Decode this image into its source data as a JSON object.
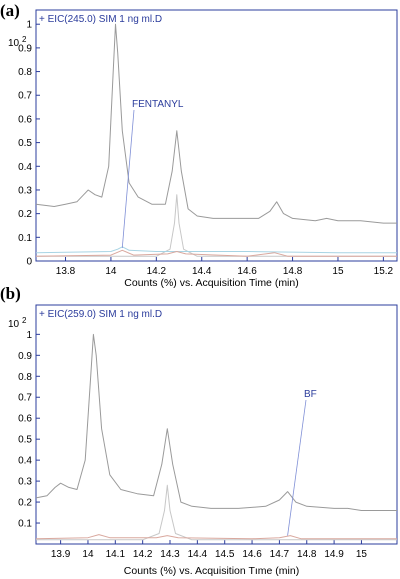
{
  "chart_data": [
    {
      "type": "line",
      "panel_label": "(a)",
      "trace_title": "+ EIC(245.0) SIM 1 ng ml.D",
      "y_scale_base": "10",
      "y_scale_exponent": "2",
      "xlabel": "Counts (%) vs. Acquisition Time (min)",
      "ylabel": "",
      "xlim": [
        13.67,
        15.26
      ],
      "ylim": [
        0,
        1.06
      ],
      "x_ticks": [
        13.8,
        14,
        14.2,
        14.4,
        14.6,
        14.8,
        15,
        15.2
      ],
      "x_tick_labels": [
        "13.8",
        "14",
        "14.2",
        "14.4",
        "14.6",
        "14.8",
        "15",
        "15.2"
      ],
      "y_ticks": [
        0,
        0.1,
        0.2,
        0.3,
        0.4,
        0.5,
        0.6,
        0.7,
        0.8,
        0.9,
        1
      ],
      "y_tick_labels": [
        "0",
        "0.1",
        "0.2",
        "0.3",
        "0.4",
        "0.5",
        "0.6",
        "0.7",
        "0.8",
        "0.9",
        "1"
      ],
      "annotations": [
        {
          "text": "FENTANYL",
          "x": 14.05,
          "y": 0.055
        }
      ],
      "series": [
        {
          "color": "#9a9a9a",
          "x": [
            13.67,
            13.75,
            13.8,
            13.85,
            13.88,
            13.9,
            13.93,
            13.96,
            13.99,
            14.01,
            14.02,
            14.03,
            14.05,
            14.08,
            14.12,
            14.18,
            14.24,
            14.27,
            14.29,
            14.31,
            14.34,
            14.38,
            14.45,
            14.55,
            14.65,
            14.7,
            14.73,
            14.76,
            14.8,
            14.9,
            14.95,
            15.0,
            15.1,
            15.2,
            15.26
          ],
          "y": [
            0.24,
            0.23,
            0.24,
            0.25,
            0.28,
            0.3,
            0.28,
            0.27,
            0.4,
            0.8,
            1.0,
            0.88,
            0.55,
            0.33,
            0.27,
            0.24,
            0.24,
            0.38,
            0.55,
            0.38,
            0.22,
            0.19,
            0.18,
            0.18,
            0.18,
            0.21,
            0.25,
            0.2,
            0.18,
            0.17,
            0.18,
            0.17,
            0.17,
            0.16,
            0.16
          ]
        },
        {
          "color": "#c7c7c7",
          "x": [
            13.67,
            14.1,
            14.2,
            14.26,
            14.28,
            14.29,
            14.3,
            14.32,
            14.38,
            14.6,
            15.26
          ],
          "y": [
            0.02,
            0.02,
            0.02,
            0.05,
            0.16,
            0.28,
            0.16,
            0.05,
            0.02,
            0.02,
            0.02
          ]
        },
        {
          "color": "#a8d4e4",
          "x": [
            13.67,
            14.0,
            14.03,
            14.05,
            14.08,
            14.2,
            14.6,
            15.0,
            15.26
          ],
          "y": [
            0.035,
            0.04,
            0.05,
            0.06,
            0.045,
            0.04,
            0.04,
            0.035,
            0.035
          ]
        },
        {
          "color": "#d9a89e",
          "x": [
            13.67,
            14.0,
            14.05,
            14.1,
            14.25,
            14.29,
            14.33,
            14.6,
            14.72,
            14.78,
            15.0,
            15.26
          ],
          "y": [
            0.02,
            0.025,
            0.045,
            0.025,
            0.03,
            0.04,
            0.03,
            0.02,
            0.035,
            0.02,
            0.02,
            0.02
          ]
        }
      ]
    },
    {
      "type": "line",
      "panel_label": "(b)",
      "trace_title": "+ EIC(259.0) SIM 1 ng ml.D",
      "y_scale_base": "10",
      "y_scale_exponent": "2",
      "xlabel": "Counts (%) vs. Acquisition Tıme (min)",
      "ylabel": "",
      "xlim": [
        13.81,
        15.13
      ],
      "ylim": [
        0,
        1.14
      ],
      "x_ticks": [
        13.9,
        14,
        14.1,
        14.2,
        14.3,
        14.4,
        14.5,
        14.6,
        14.7,
        14.8,
        14.9,
        15
      ],
      "x_tick_labels": [
        "13.9",
        "14",
        "14.1",
        "14.2",
        "14.3",
        "14.4",
        "14.5",
        "14.6",
        "14.7",
        "14.8",
        "14.9",
        "15"
      ],
      "y_ticks": [
        0.1,
        0.2,
        0.3,
        0.4,
        0.5,
        0.6,
        0.7,
        0.8,
        0.9,
        1
      ],
      "y_tick_labels": [
        "0.1",
        "0.2",
        "0.3",
        "0.4",
        "0.5",
        "0.6",
        "0.7",
        "0.8",
        "0.9",
        "1"
      ],
      "annotations": [
        {
          "text": "BF",
          "x": 14.73,
          "y": 0.04
        }
      ],
      "series": [
        {
          "color": "#9a9a9a",
          "x": [
            13.81,
            13.85,
            13.88,
            13.9,
            13.93,
            13.96,
            13.99,
            14.01,
            14.02,
            14.03,
            14.05,
            14.08,
            14.12,
            14.18,
            14.24,
            14.27,
            14.29,
            14.31,
            14.34,
            14.38,
            14.45,
            14.55,
            14.65,
            14.7,
            14.73,
            14.76,
            14.8,
            14.9,
            14.95,
            15.0,
            15.1,
            15.13
          ],
          "y": [
            0.22,
            0.23,
            0.27,
            0.29,
            0.27,
            0.26,
            0.4,
            0.8,
            1.0,
            0.9,
            0.55,
            0.33,
            0.26,
            0.24,
            0.23,
            0.38,
            0.55,
            0.38,
            0.2,
            0.18,
            0.17,
            0.17,
            0.18,
            0.21,
            0.25,
            0.2,
            0.18,
            0.17,
            0.17,
            0.16,
            0.16,
            0.16
          ]
        },
        {
          "color": "#c7c7c7",
          "x": [
            13.81,
            14.1,
            14.2,
            14.26,
            14.28,
            14.29,
            14.3,
            14.32,
            14.38,
            14.6,
            15.13
          ],
          "y": [
            0.02,
            0.02,
            0.02,
            0.05,
            0.16,
            0.28,
            0.16,
            0.05,
            0.02,
            0.02,
            0.02
          ]
        },
        {
          "color": "#d9a89e",
          "x": [
            13.81,
            14.0,
            14.04,
            14.08,
            14.25,
            14.29,
            14.33,
            14.6,
            14.7,
            14.74,
            14.78,
            15.0,
            15.13
          ],
          "y": [
            0.025,
            0.03,
            0.045,
            0.03,
            0.03,
            0.04,
            0.03,
            0.025,
            0.03,
            0.04,
            0.025,
            0.025,
            0.025
          ]
        }
      ]
    }
  ]
}
